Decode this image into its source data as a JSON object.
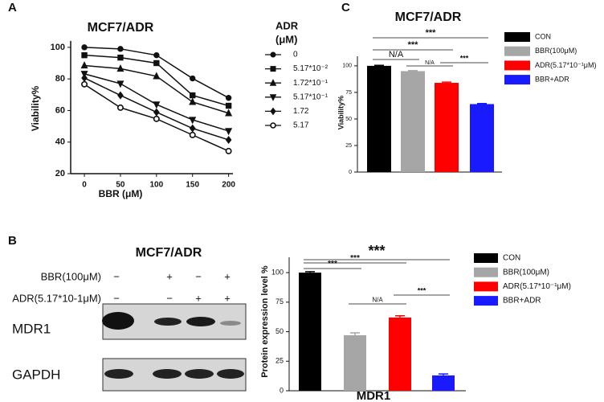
{
  "chart_data": [
    {
      "type": "line",
      "panel_label": "A",
      "title": "MCF7/ADR",
      "x_label": "BBR (μM)",
      "y_label": "Viability%",
      "x": [
        0,
        50,
        100,
        150,
        200
      ],
      "xlim": [
        -19,
        206
      ],
      "xticks": [
        0,
        50,
        100,
        150,
        200
      ],
      "ylim": [
        20,
        104
      ],
      "yticks": [
        20,
        40,
        60,
        80,
        100
      ],
      "legend_title": [
        "ADR",
        "(μM)"
      ],
      "series": [
        {
          "name": "0",
          "color": "#111",
          "marker": "circle",
          "values": [
            100,
            99,
            95,
            80.3,
            68
          ]
        },
        {
          "name": "5.17*10⁻²",
          "color": "#111",
          "marker": "square",
          "values": [
            95,
            93.5,
            90,
            69.6,
            63
          ]
        },
        {
          "name": "1.72*10⁻¹",
          "color": "#111",
          "marker": "triangle-up",
          "values": [
            88.5,
            86.5,
            81.7,
            65.4,
            58.3
          ]
        },
        {
          "name": "5.17*10⁻¹",
          "color": "#111",
          "marker": "triangle-down",
          "values": [
            83.2,
            77,
            63.8,
            54.1,
            47
          ]
        },
        {
          "name": "1.72",
          "color": "#111",
          "marker": "diamond",
          "values": [
            80.6,
            69.6,
            58.9,
            48.7,
            41.4
          ]
        },
        {
          "name": "5.17",
          "color": "#111",
          "marker": "open-circle",
          "values": [
            76.6,
            61.8,
            54.7,
            44.5,
            34.3
          ]
        }
      ]
    },
    {
      "type": "bar",
      "panel_label": "B",
      "y_label": "Protein expression level %",
      "x_label": "MDR1",
      "ylim": [
        0,
        113
      ],
      "yticks": [
        0,
        25,
        50,
        75,
        100
      ],
      "annotations": [
        "***",
        "***",
        "***",
        "N/A",
        "***"
      ],
      "series": [
        {
          "name": "CON",
          "color": "#000000",
          "values": [
            100
          ],
          "errors": [
            0.8
          ]
        },
        {
          "name": "BBR(100μM)",
          "color": "#a6a6a6",
          "values": [
            47
          ],
          "errors": [
            2
          ]
        },
        {
          "name": "ADR(5.17*10⁻¹μM)",
          "color": "#ff0000",
          "values": [
            62
          ],
          "errors": [
            1.5
          ]
        },
        {
          "name": "BBR+ADR",
          "color": "#1a1aff",
          "values": [
            13
          ],
          "errors": [
            1.2
          ]
        }
      ]
    },
    {
      "type": "bar",
      "panel_label": "C",
      "title": "MCF7/ADR",
      "y_label": "Viability%",
      "ylim": [
        0,
        109
      ],
      "yticks": [
        0,
        25,
        50,
        75,
        100
      ],
      "annotations": [
        "***",
        "***",
        "N/A",
        "N/A",
        "***"
      ],
      "series": [
        {
          "name": "CON",
          "color": "#000000",
          "values": [
            100
          ],
          "errors": [
            0.5
          ]
        },
        {
          "name": "BBR(100μM)",
          "color": "#a6a6a6",
          "values": [
            95
          ],
          "errors": [
            0.5
          ]
        },
        {
          "name": "ADR(5.17*10⁻¹μM)",
          "color": "#ff0000",
          "values": [
            84
          ],
          "errors": [
            0.7
          ]
        },
        {
          "name": "BBR+ADR",
          "color": "#1a1aff",
          "values": [
            64
          ],
          "errors": [
            0.5
          ]
        }
      ]
    }
  ],
  "blot": {
    "title": "MCF7/ADR",
    "treatments": [
      {
        "label": "BBR(100μM)",
        "signs": [
          "−",
          "+",
          "−",
          "+"
        ]
      },
      {
        "label": "ADR(5.17*10-1μM)",
        "signs": [
          "−",
          "−",
          "+",
          "+"
        ]
      }
    ],
    "proteins": [
      "MDR1",
      "GAPDH"
    ]
  }
}
